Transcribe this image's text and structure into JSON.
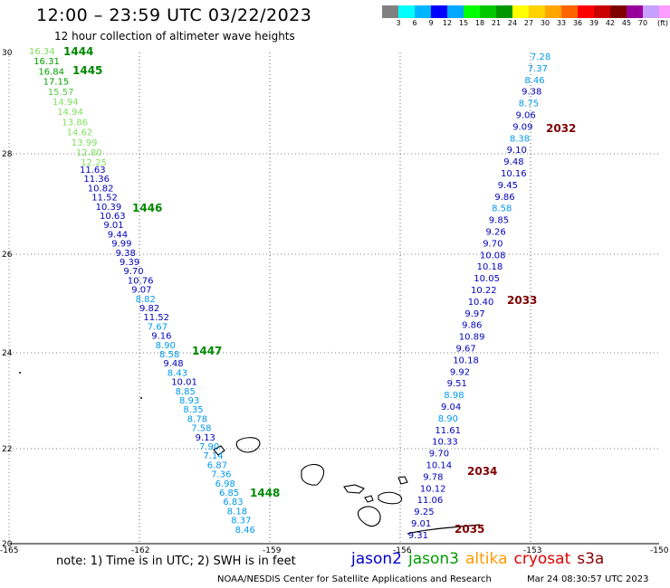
{
  "title": "12:00 – 23:59 UTC 03/22/2023",
  "subtitle": "12 hour collection of altimeter wave heights",
  "legend": {
    "colors": [
      "#808080",
      "#00ffff",
      "#00b4ff",
      "#0000ff",
      "#00a8ff",
      "#00ff00",
      "#00c800",
      "#009600",
      "#ffff00",
      "#ffd200",
      "#ffa500",
      "#ff6400",
      "#ff0000",
      "#c80000",
      "#800000",
      "#990099",
      "#c8a0ff",
      "#ff9cff",
      "#000000"
    ],
    "labels": [
      "3",
      "6",
      "9",
      "12",
      "15",
      "18",
      "21",
      "24",
      "27",
      "30",
      "33",
      "36",
      "39",
      "42",
      "45",
      "70",
      "(ft)"
    ]
  },
  "axes": {
    "x_ticks": [
      "-165",
      "-162",
      "-159",
      "-156",
      "-153",
      "-150"
    ],
    "y_ticks": [
      "30",
      "28",
      "26",
      "24",
      "22",
      "20"
    ]
  },
  "colors": {
    "jason2": "#0000cc",
    "jason3": "#008800",
    "altika": "#ff9900",
    "cryosat": "#cc0000",
    "s3a": "#880000",
    "green_label": "#008800",
    "dark_red_label": "#800000"
  },
  "tracks": [
    {
      "values": [
        "16.34",
        "16.31",
        "16.84",
        "17.15",
        "15.57",
        "14.94",
        "14.94",
        "13.86",
        "14.62",
        "13.99",
        "12.80",
        "12.25"
      ],
      "colors": [
        "#80e060",
        "#00a000",
        "#00a000",
        "#00a000",
        "#50c840",
        "#80e060",
        "#80e060",
        "#80e060",
        "#80e060",
        "#80e060",
        "#80e060",
        "#80e060"
      ]
    },
    {
      "values": [
        "11.63",
        "11.36",
        "10.82",
        "11.52",
        "10.39",
        "10.63",
        "9.01",
        "9.44",
        "9.99",
        "9.38",
        "9.39",
        "9.70",
        "10.76",
        "9.07",
        "8.82",
        "9.82",
        "11.52",
        "7.67",
        "9.16",
        "8.90",
        "8.58",
        "9.48",
        "8.43",
        "10.01",
        "8.85",
        "8.93",
        "8.35",
        "8.78",
        "7.58",
        "9.13",
        "7.90",
        "7.14",
        "6.87",
        "7.36",
        "6.98",
        "6.85",
        "6.83",
        "8.18",
        "8.37",
        "8.46"
      ]
    },
    {
      "values": [
        "7.28",
        "7.37",
        "8.46",
        "9.38",
        "8.75",
        "9.06",
        "9.09",
        "8.38",
        "9.10",
        "9.48",
        "10.16",
        "9.45",
        "9.86",
        "8.58",
        "9.85",
        "9.26",
        "9.70",
        "10.08",
        "10.18",
        "10.05",
        "10.22",
        "10.40",
        "9.97",
        "9.86",
        "10.89",
        "9.67",
        "10.18",
        "9.92",
        "9.51",
        "8.98",
        "9.04",
        "8.90",
        "11.61",
        "10.33",
        "9.70",
        "10.14",
        "9.78",
        "10.12",
        "11.06",
        "9.25",
        "9.01",
        "9.31"
      ]
    }
  ],
  "time_labels": [
    {
      "text": "1444",
      "sat": "jason3"
    },
    {
      "text": "1445",
      "sat": "jason3"
    },
    {
      "text": "1446",
      "sat": "jason3"
    },
    {
      "text": "1447",
      "sat": "jason3"
    },
    {
      "text": "1448",
      "sat": "jason3"
    },
    {
      "text": "2032",
      "sat": "s3a"
    },
    {
      "text": "2033",
      "sat": "s3a"
    },
    {
      "text": "2034",
      "sat": "s3a"
    },
    {
      "text": "2035",
      "sat": "s3a"
    }
  ],
  "note": "note: 1) Time is in UTC; 2) SWH is in feet",
  "satellites": [
    {
      "name": "jason2",
      "color": "#0000cc"
    },
    {
      "name": "jason3",
      "color": "#009900"
    },
    {
      "name": "altika",
      "color": "#ff9900"
    },
    {
      "name": "cryosat",
      "color": "#dd0000"
    },
    {
      "name": "s3a",
      "color": "#880000"
    }
  ],
  "credit": "NOAA/NESDIS Center for Satellite Applications and Research",
  "timestamp": "Mar 24 08:30:57 UTC 2023"
}
